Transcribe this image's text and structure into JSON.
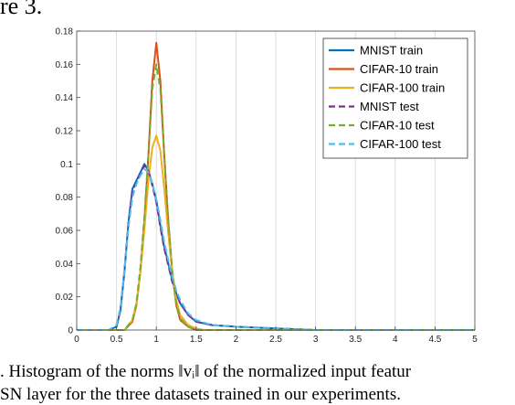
{
  "page": {
    "top_fragment": "re 3.",
    "caption_line1": ".  Histogram of the norms ‖vᵢ‖ of the normalized input featur",
    "caption_line2": "SN layer for the three datasets trained in our experiments."
  },
  "chart_data": {
    "type": "line",
    "title": "",
    "xlabel": "",
    "ylabel": "",
    "xlim": [
      0,
      5
    ],
    "ylim": [
      0,
      0.18
    ],
    "grid": "vertical",
    "legend_position": "top-right",
    "x_ticks": [
      "0",
      "0.5",
      "1",
      "1.5",
      "2",
      "2.5",
      "3",
      "3.5",
      "4",
      "4.5",
      "5"
    ],
    "y_ticks": [
      "0",
      "0.02",
      "0.04",
      "0.06",
      "0.08",
      "0.1",
      "0.12",
      "0.14",
      "0.16",
      "0.18"
    ],
    "series": [
      {
        "name": "MNIST train",
        "style": "solid",
        "color": "#0072BD",
        "points": [
          [
            0,
            0
          ],
          [
            0.4,
            0
          ],
          [
            0.5,
            0.002
          ],
          [
            0.55,
            0.012
          ],
          [
            0.6,
            0.035
          ],
          [
            0.65,
            0.065
          ],
          [
            0.7,
            0.085
          ],
          [
            0.75,
            0.09
          ],
          [
            0.8,
            0.095
          ],
          [
            0.85,
            0.1
          ],
          [
            0.9,
            0.096
          ],
          [
            0.95,
            0.088
          ],
          [
            1.0,
            0.078
          ],
          [
            1.05,
            0.063
          ],
          [
            1.1,
            0.05
          ],
          [
            1.15,
            0.04
          ],
          [
            1.2,
            0.03
          ],
          [
            1.25,
            0.022
          ],
          [
            1.3,
            0.016
          ],
          [
            1.4,
            0.009
          ],
          [
            1.5,
            0.005
          ],
          [
            1.7,
            0.003
          ],
          [
            2.0,
            0.002
          ],
          [
            2.5,
            0.001
          ],
          [
            3,
            0
          ],
          [
            5,
            0
          ]
        ]
      },
      {
        "name": "CIFAR-10 train",
        "style": "solid",
        "color": "#D95319",
        "points": [
          [
            0,
            0
          ],
          [
            0.6,
            0
          ],
          [
            0.7,
            0.005
          ],
          [
            0.75,
            0.015
          ],
          [
            0.8,
            0.035
          ],
          [
            0.85,
            0.065
          ],
          [
            0.9,
            0.105
          ],
          [
            0.95,
            0.15
          ],
          [
            1.0,
            0.173
          ],
          [
            1.05,
            0.15
          ],
          [
            1.1,
            0.105
          ],
          [
            1.15,
            0.065
          ],
          [
            1.2,
            0.035
          ],
          [
            1.25,
            0.015
          ],
          [
            1.3,
            0.006
          ],
          [
            1.4,
            0.002
          ],
          [
            1.5,
            0
          ],
          [
            5,
            0
          ]
        ]
      },
      {
        "name": "CIFAR-100 train",
        "style": "solid",
        "color": "#EDB120",
        "points": [
          [
            0,
            0
          ],
          [
            0.6,
            0
          ],
          [
            0.7,
            0.006
          ],
          [
            0.75,
            0.016
          ],
          [
            0.8,
            0.035
          ],
          [
            0.85,
            0.06
          ],
          [
            0.9,
            0.09
          ],
          [
            0.95,
            0.11
          ],
          [
            1.0,
            0.117
          ],
          [
            1.05,
            0.108
          ],
          [
            1.1,
            0.085
          ],
          [
            1.15,
            0.058
          ],
          [
            1.2,
            0.035
          ],
          [
            1.25,
            0.018
          ],
          [
            1.3,
            0.009
          ],
          [
            1.4,
            0.003
          ],
          [
            1.5,
            0.001
          ],
          [
            1.6,
            0
          ],
          [
            5,
            0
          ]
        ]
      },
      {
        "name": "MNIST test",
        "style": "dashed",
        "color": "#7E2F8E",
        "points": [
          [
            0,
            0
          ],
          [
            0.4,
            0
          ],
          [
            0.5,
            0.002
          ],
          [
            0.55,
            0.013
          ],
          [
            0.6,
            0.036
          ],
          [
            0.65,
            0.064
          ],
          [
            0.7,
            0.084
          ],
          [
            0.75,
            0.089
          ],
          [
            0.8,
            0.094
          ],
          [
            0.85,
            0.099
          ],
          [
            0.9,
            0.096
          ],
          [
            0.95,
            0.087
          ],
          [
            1.0,
            0.077
          ],
          [
            1.05,
            0.062
          ],
          [
            1.1,
            0.049
          ],
          [
            1.15,
            0.039
          ],
          [
            1.2,
            0.029
          ],
          [
            1.25,
            0.022
          ],
          [
            1.3,
            0.016
          ],
          [
            1.4,
            0.009
          ],
          [
            1.5,
            0.005
          ],
          [
            1.7,
            0.003
          ],
          [
            2.0,
            0.002
          ],
          [
            2.5,
            0.001
          ],
          [
            3,
            0
          ],
          [
            5,
            0
          ]
        ]
      },
      {
        "name": "CIFAR-10 test",
        "style": "dashed",
        "color": "#77AC30",
        "points": [
          [
            0,
            0
          ],
          [
            0.6,
            0
          ],
          [
            0.7,
            0.006
          ],
          [
            0.75,
            0.016
          ],
          [
            0.8,
            0.038
          ],
          [
            0.85,
            0.068
          ],
          [
            0.9,
            0.105
          ],
          [
            0.95,
            0.145
          ],
          [
            1.0,
            0.16
          ],
          [
            1.05,
            0.145
          ],
          [
            1.1,
            0.105
          ],
          [
            1.15,
            0.066
          ],
          [
            1.2,
            0.036
          ],
          [
            1.25,
            0.016
          ],
          [
            1.3,
            0.007
          ],
          [
            1.4,
            0.002
          ],
          [
            1.5,
            0
          ],
          [
            5,
            0
          ]
        ]
      },
      {
        "name": "CIFAR-100 test",
        "style": "dashed",
        "color": "#4DBEEE",
        "points": [
          [
            0,
            0
          ],
          [
            0.4,
            0
          ],
          [
            0.5,
            0.003
          ],
          [
            0.55,
            0.014
          ],
          [
            0.6,
            0.036
          ],
          [
            0.65,
            0.062
          ],
          [
            0.7,
            0.08
          ],
          [
            0.75,
            0.088
          ],
          [
            0.8,
            0.093
          ],
          [
            0.85,
            0.097
          ],
          [
            0.9,
            0.095
          ],
          [
            0.95,
            0.088
          ],
          [
            1.0,
            0.079
          ],
          [
            1.05,
            0.066
          ],
          [
            1.1,
            0.053
          ],
          [
            1.15,
            0.042
          ],
          [
            1.2,
            0.032
          ],
          [
            1.25,
            0.024
          ],
          [
            1.3,
            0.018
          ],
          [
            1.4,
            0.01
          ],
          [
            1.5,
            0.006
          ],
          [
            1.7,
            0.003
          ],
          [
            2.0,
            0.002
          ],
          [
            2.5,
            0.001
          ],
          [
            3,
            0
          ],
          [
            5,
            0
          ]
        ]
      }
    ]
  }
}
